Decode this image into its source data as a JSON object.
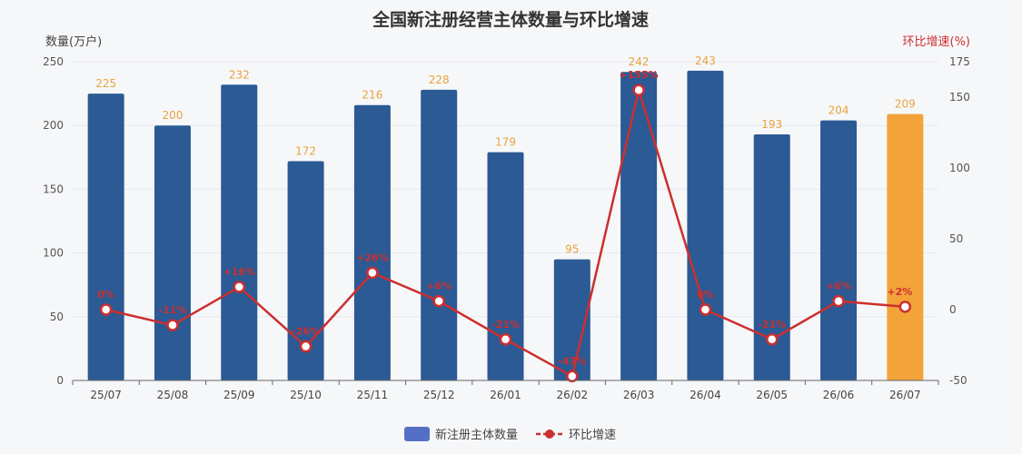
{
  "chart_data": {
    "type": "bar",
    "title": "全国新注册经营主体数量与环比增速",
    "categories": [
      "25/07",
      "25/08",
      "25/09",
      "25/10",
      "25/11",
      "25/12",
      "26/01",
      "26/02",
      "26/03",
      "26/04",
      "26/05",
      "26/06",
      "26/07"
    ],
    "y_left": {
      "label": "数量(万户)",
      "min": 0,
      "max": 250,
      "ticks": [
        0,
        50,
        100,
        150,
        200,
        250
      ]
    },
    "y_right": {
      "label": "环比增速(%)",
      "min": -50,
      "max": 175,
      "ticks": [
        -50,
        0,
        50,
        100,
        150,
        175
      ]
    },
    "grid": true,
    "legend_position": "bottom",
    "series": [
      {
        "name": "新注册主体数量",
        "type": "bar",
        "axis": "left",
        "values": [
          225,
          200,
          232,
          172,
          216,
          228,
          179,
          95,
          242,
          243,
          193,
          204,
          209
        ],
        "labels": [
          "225",
          "200",
          "232",
          "172",
          "216",
          "228",
          "179",
          "95",
          "242",
          "243",
          "193",
          "204",
          "209"
        ],
        "color": "#2b5a94",
        "highlight_color": "#f2a33a",
        "highlight_index": 12,
        "label_color": "#e8a33c"
      },
      {
        "name": "环比增速",
        "type": "line",
        "axis": "right",
        "values": [
          0,
          -11,
          16,
          -26,
          26,
          6,
          -21,
          -47,
          155,
          0,
          -21,
          6,
          2
        ],
        "labels": [
          "0%",
          "-11%",
          "+16%",
          "-26%",
          "+26%",
          "+6%",
          "-21%",
          "-47%",
          "+155%",
          "0%",
          "-21%",
          "+6%",
          "+2%"
        ],
        "color": "#cc2f2f"
      }
    ]
  }
}
